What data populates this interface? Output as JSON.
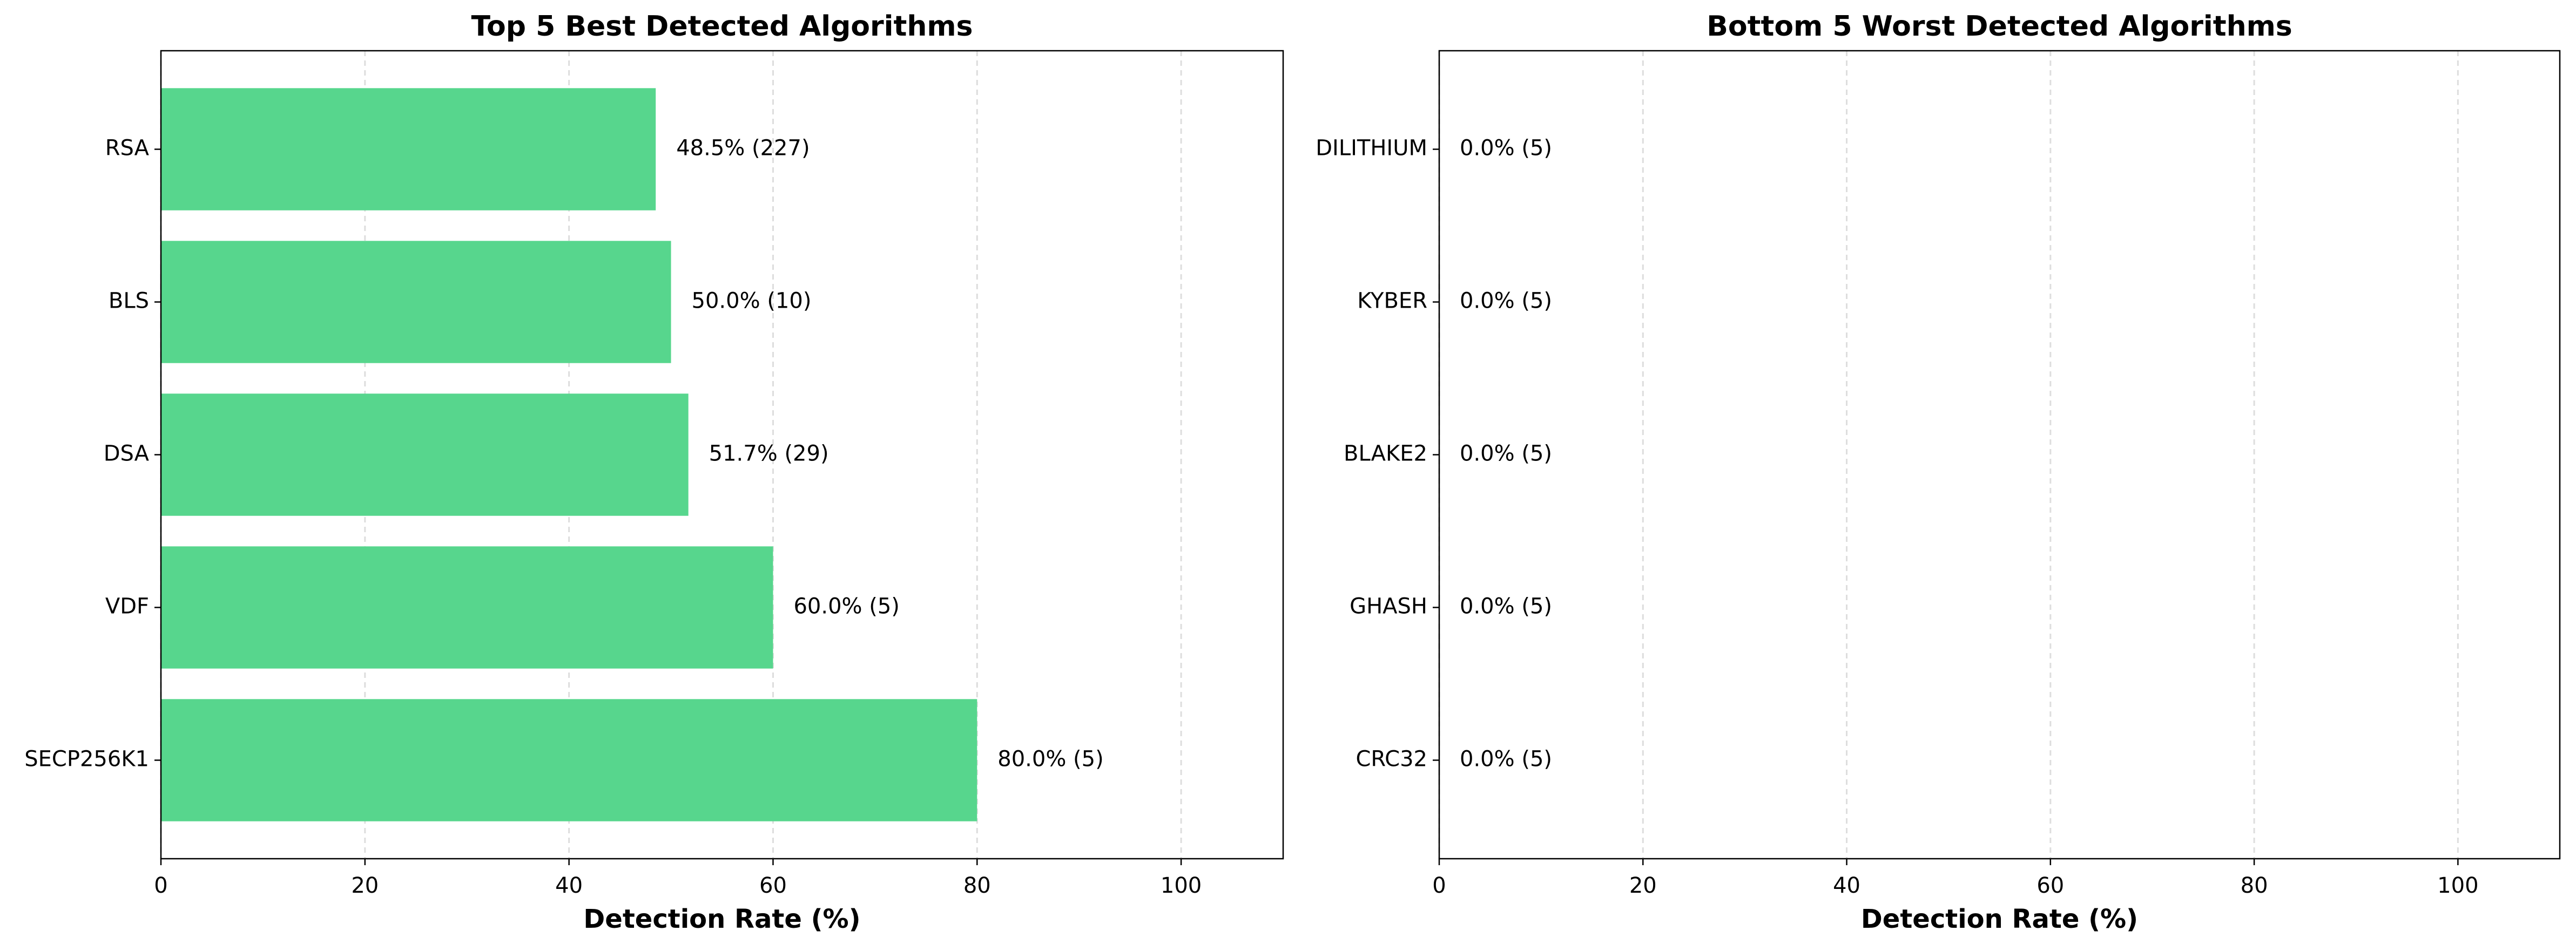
{
  "chart_data": [
    {
      "type": "bar",
      "orientation": "horizontal",
      "title": "Top 5 Best Detected Algorithms",
      "categories": [
        "RSA",
        "BLS",
        "DSA",
        "VDF",
        "SECP256K1"
      ],
      "values": [
        48.5,
        50.0,
        51.7,
        60.0,
        80.0
      ],
      "value_labels": [
        "48.5% (227)",
        "50.0% (10)",
        "51.7% (29)",
        "60.0% (5)",
        "80.0% (5)"
      ],
      "color": "#57d68d",
      "xlabel": "Detection Rate (%)",
      "xlim": [
        0,
        110
      ],
      "xticks": [
        0,
        20,
        40,
        60,
        80,
        100
      ],
      "grid": true
    },
    {
      "type": "bar",
      "orientation": "horizontal",
      "title": "Bottom 5 Worst Detected Algorithms",
      "categories": [
        "DILITHIUM",
        "KYBER",
        "BLAKE2",
        "GHASH",
        "CRC32"
      ],
      "values": [
        0.0,
        0.0,
        0.0,
        0.0,
        0.0
      ],
      "value_labels": [
        "0.0% (5)",
        "0.0% (5)",
        "0.0% (5)",
        "0.0% (5)",
        "0.0% (5)"
      ],
      "color": "#e05a5a",
      "xlabel": "Detection Rate (%)",
      "xlim": [
        0,
        110
      ],
      "xticks": [
        0,
        20,
        40,
        60,
        80,
        100
      ],
      "grid": true
    }
  ]
}
